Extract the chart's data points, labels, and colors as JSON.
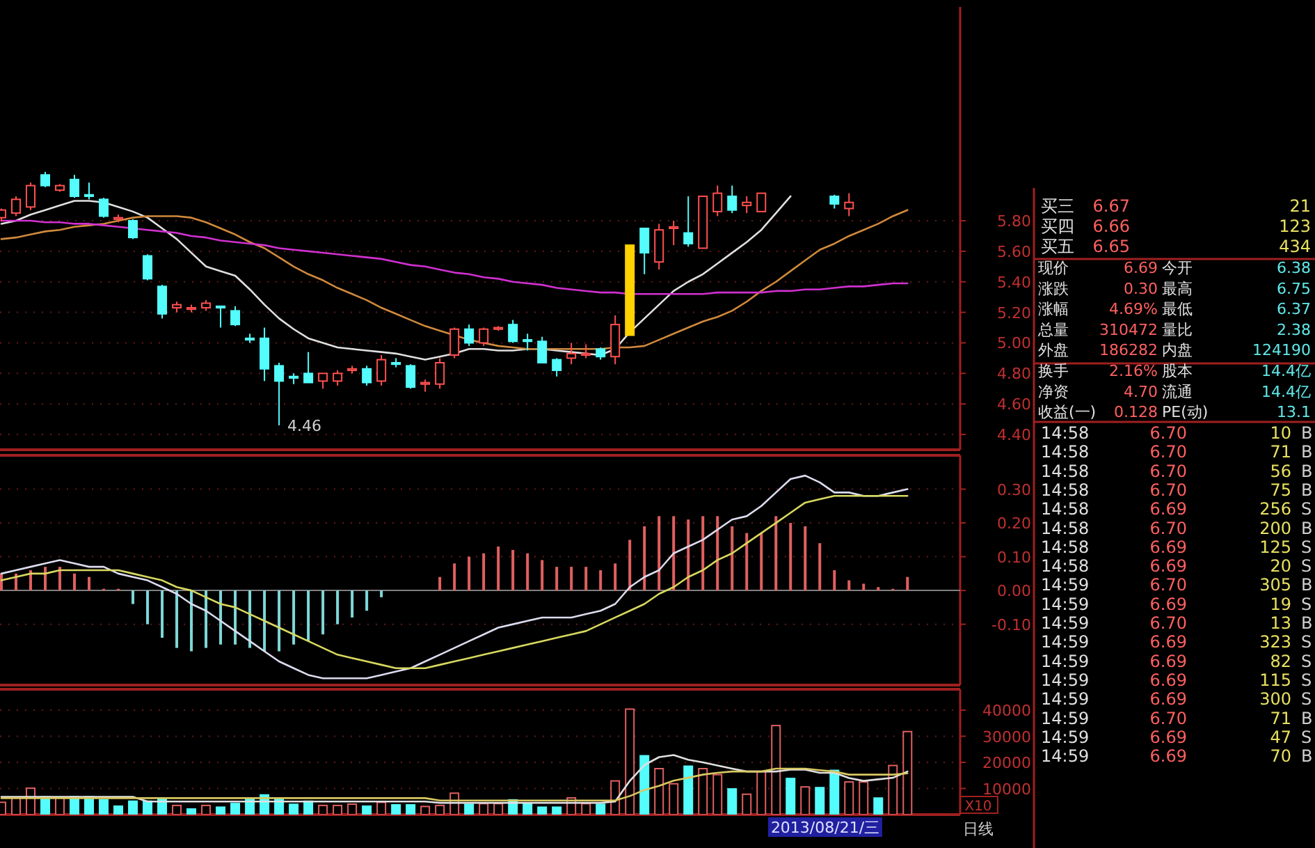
{
  "chart_data": [
    {
      "type": "candlestick",
      "categories": [
        null,
        null,
        null,
        null,
        null,
        null,
        null,
        null,
        null,
        null,
        null,
        null,
        null,
        null,
        null,
        null,
        null,
        null,
        null,
        null,
        null,
        null,
        null,
        null,
        null,
        null,
        null,
        null,
        null,
        null,
        null,
        null,
        null,
        null,
        null,
        null,
        null,
        null,
        null,
        null,
        null,
        null,
        null,
        null,
        null,
        null,
        null,
        null,
        null,
        null,
        null,
        null,
        null,
        null,
        null,
        null,
        null,
        null,
        null,
        null,
        null,
        null,
        null
      ],
      "ohlc": [
        [
          5.82,
          5.88,
          5.8,
          5.87
        ],
        [
          5.85,
          5.96,
          5.83,
          5.94
        ],
        [
          5.89,
          6.05,
          5.87,
          6.03
        ],
        [
          6.1,
          6.12,
          6.02,
          6.03
        ],
        [
          6.0,
          6.04,
          5.99,
          6.03
        ],
        [
          6.07,
          6.1,
          5.95,
          5.96
        ],
        [
          5.97,
          6.05,
          5.94,
          5.96
        ],
        [
          5.94,
          5.95,
          5.82,
          5.83
        ],
        [
          5.81,
          5.84,
          5.79,
          5.82
        ],
        [
          5.8,
          5.81,
          5.68,
          5.69
        ],
        [
          5.57,
          5.58,
          5.41,
          5.42
        ],
        [
          5.37,
          5.38,
          5.16,
          5.19
        ],
        [
          5.23,
          5.27,
          5.2,
          5.25
        ],
        [
          5.22,
          5.25,
          5.2,
          5.23
        ],
        [
          5.23,
          5.28,
          5.21,
          5.26
        ],
        [
          5.24,
          5.24,
          5.1,
          5.23
        ],
        [
          5.21,
          5.24,
          5.11,
          5.12
        ],
        [
          5.03,
          5.06,
          5.0,
          5.02
        ],
        [
          5.03,
          5.1,
          4.75,
          4.83
        ],
        [
          4.85,
          4.87,
          4.46,
          4.75
        ],
        [
          4.78,
          4.8,
          4.73,
          4.77
        ],
        [
          4.8,
          4.94,
          4.74,
          4.74
        ],
        [
          4.75,
          4.8,
          4.7,
          4.8
        ],
        [
          4.75,
          4.82,
          4.72,
          4.8
        ],
        [
          4.82,
          4.85,
          4.8,
          4.83
        ],
        [
          4.83,
          4.85,
          4.72,
          4.74
        ],
        [
          4.75,
          4.92,
          4.72,
          4.89
        ],
        [
          4.87,
          4.9,
          4.84,
          4.86
        ],
        [
          4.85,
          4.86,
          4.7,
          4.71
        ],
        [
          4.73,
          4.76,
          4.68,
          4.74
        ],
        [
          4.73,
          4.9,
          4.7,
          4.87
        ],
        [
          4.92,
          5.1,
          4.9,
          5.09
        ],
        [
          5.09,
          5.12,
          4.98,
          5.0
        ],
        [
          5.0,
          5.1,
          4.98,
          5.09
        ],
        [
          5.09,
          5.11,
          5.08,
          5.1
        ],
        [
          5.12,
          5.15,
          5.0,
          5.01
        ],
        [
          5.02,
          5.06,
          4.95,
          5.01
        ],
        [
          5.01,
          5.04,
          4.87,
          4.87
        ],
        [
          4.89,
          4.9,
          4.78,
          4.82
        ],
        [
          4.9,
          5.0,
          4.86,
          4.93
        ],
        [
          4.92,
          4.99,
          4.9,
          4.93
        ],
        [
          4.96,
          4.97,
          4.89,
          4.91
        ],
        [
          4.91,
          5.18,
          4.86,
          5.12
        ],
        [
          5.05,
          5.64,
          5.05,
          5.64
        ],
        [
          5.75,
          5.75,
          5.45,
          5.59
        ],
        [
          5.53,
          5.78,
          5.48,
          5.74
        ],
        [
          5.75,
          5.8,
          5.64,
          5.76
        ],
        [
          5.72,
          5.96,
          5.63,
          5.65
        ],
        [
          5.62,
          5.96,
          5.62,
          5.96
        ],
        [
          5.86,
          6.03,
          5.83,
          5.98
        ],
        [
          5.96,
          6.03,
          5.85,
          5.87
        ],
        [
          5.9,
          5.96,
          5.85,
          5.92
        ],
        [
          5.86,
          5.98,
          5.86,
          5.98
        ],
        null,
        null,
        null,
        null,
        [
          5.96,
          5.97,
          5.88,
          5.91
        ],
        [
          5.88,
          5.98,
          5.83,
          5.92
        ],
        null,
        null,
        null,
        null
      ],
      "colors": [
        "#ff5050",
        "#ff5050",
        "#ff5050",
        "#54fcfc",
        "#ff5050",
        "#54fcfc",
        "#54fcfc",
        "#54fcfc",
        "#ff5050",
        "#54fcfc",
        "#54fcfc",
        "#54fcfc",
        "#ff5050",
        "#ff5050",
        "#ff5050",
        "#54fcfc",
        "#54fcfc",
        "#54fcfc",
        "#54fcfc",
        "#54fcfc",
        "#54fcfc",
        "#54fcfc",
        "#ff5050",
        "#ff5050",
        "#ff5050",
        "#54fcfc",
        "#ff5050",
        "#54fcfc",
        "#54fcfc",
        "#ff5050",
        "#ff5050",
        "#ff5050",
        "#54fcfc",
        "#ff5050",
        "#ff5050",
        "#54fcfc",
        "#54fcfc",
        "#54fcfc",
        "#54fcfc",
        "#ff5050",
        "#ff5050",
        "#54fcfc",
        "#ff5050",
        "#ffd200",
        "#54fcfc",
        "#ff5050",
        "#ff5050",
        "#54fcfc",
        "#ff5050",
        "#ff5050",
        "#54fcfc",
        "#ff5050",
        "#ff5050",
        null,
        null,
        null,
        null,
        "#54fcfc",
        "#ff5050",
        null,
        null,
        null,
        null
      ],
      "series": [
        {
          "type": "line",
          "color": "#e0e0e0",
          "values": [
            5.78,
            5.8,
            5.84,
            5.87,
            5.9,
            5.93,
            5.93,
            5.92,
            5.89,
            5.86,
            5.82,
            5.75,
            5.68,
            5.59,
            5.5,
            5.47,
            5.44,
            5.35,
            5.25,
            5.16,
            5.09,
            5.03,
            5.0,
            4.97,
            4.96,
            4.95,
            4.94,
            4.93,
            4.91,
            4.89,
            4.91,
            4.93,
            4.96,
            4.96,
            4.95,
            4.95,
            4.96,
            4.96,
            4.95,
            4.94,
            4.93,
            4.92,
            4.96,
            5.07,
            5.16,
            5.25,
            5.34,
            5.4,
            5.45,
            5.52,
            5.59,
            5.66,
            5.74,
            5.85,
            5.96,
            null,
            null,
            null,
            null,
            null,
            null,
            null,
            null
          ]
        },
        {
          "type": "line",
          "color": "#d08a3c",
          "values": [
            5.68,
            5.69,
            5.71,
            5.73,
            5.74,
            5.76,
            5.77,
            5.78,
            5.8,
            5.82,
            5.83,
            5.83,
            5.83,
            5.82,
            5.79,
            5.75,
            5.71,
            5.66,
            5.62,
            5.56,
            5.5,
            5.45,
            5.41,
            5.36,
            5.32,
            5.28,
            5.23,
            5.19,
            5.15,
            5.11,
            5.08,
            5.05,
            5.02,
            5.0,
            4.98,
            4.97,
            4.96,
            4.96,
            4.96,
            4.96,
            4.96,
            4.96,
            4.97,
            4.97,
            4.98,
            5.02,
            5.06,
            5.1,
            5.14,
            5.17,
            5.21,
            5.27,
            5.34,
            5.4,
            5.47,
            5.54,
            5.61,
            5.65,
            5.7,
            5.74,
            5.78,
            5.83,
            5.87
          ]
        },
        {
          "type": "line",
          "color": "#d030d0",
          "values": [
            5.8,
            5.8,
            5.8,
            5.79,
            5.79,
            5.78,
            5.78,
            5.77,
            5.76,
            5.75,
            5.74,
            5.73,
            5.72,
            5.7,
            5.69,
            5.67,
            5.66,
            5.65,
            5.64,
            5.62,
            5.61,
            5.6,
            5.59,
            5.58,
            5.57,
            5.56,
            5.55,
            5.53,
            5.51,
            5.5,
            5.48,
            5.46,
            5.45,
            5.43,
            5.42,
            5.4,
            5.39,
            5.38,
            5.36,
            5.35,
            5.34,
            5.33,
            5.33,
            5.32,
            5.32,
            5.32,
            5.32,
            5.32,
            5.32,
            5.33,
            5.33,
            5.33,
            5.33,
            5.34,
            5.34,
            5.35,
            5.35,
            5.36,
            5.37,
            5.37,
            5.38,
            5.39,
            5.39
          ]
        }
      ],
      "ylim": [
        4.3,
        7.2
      ],
      "yticks": [
        {
          "value": 4.4,
          "label": "4.40"
        },
        {
          "value": 4.6,
          "label": "4.60"
        },
        {
          "value": 4.8,
          "label": "4.80"
        },
        {
          "value": 5.0,
          "label": "5.00"
        },
        {
          "value": 5.2,
          "label": "5.20"
        },
        {
          "value": 5.4,
          "label": "5.40"
        },
        {
          "value": 5.6,
          "label": "5.60"
        },
        {
          "value": 5.8,
          "label": "5.80"
        }
      ],
      "grid": "y",
      "tick_labels": "y",
      "annotations": [
        "4.46"
      ]
    },
    {
      "type": "bar",
      "categories": [
        null,
        null,
        null,
        null,
        null,
        null,
        null,
        null,
        null,
        null,
        null,
        null,
        null,
        null,
        null,
        null,
        null,
        null,
        null,
        null,
        null,
        null,
        null,
        null,
        null,
        null,
        null,
        null,
        null,
        null,
        null,
        null,
        null,
        null,
        null,
        null,
        null,
        null,
        null,
        null,
        null,
        null,
        null,
        null,
        null,
        null,
        null,
        null,
        null,
        null,
        null,
        null,
        null,
        null,
        null,
        null,
        null,
        null,
        null,
        null,
        null,
        null,
        null
      ],
      "series": [
        {
          "type": "bar",
          "color": "#e06060",
          "values": [
            0.05,
            0.05,
            0.06,
            0.07,
            0.07,
            0.05,
            0.04,
            0.005,
            0.005,
            null,
            null,
            null,
            null,
            null,
            null,
            null,
            null,
            null,
            null,
            null,
            null,
            null,
            null,
            null,
            null,
            null,
            null,
            0,
            0,
            0,
            0.04,
            0.08,
            0.1,
            0.11,
            0.13,
            0.12,
            0.11,
            0.09,
            0.07,
            0.07,
            0.07,
            0.06,
            0.08,
            0.15,
            0.19,
            0.22,
            0.22,
            0.21,
            0.22,
            0.22,
            0.19,
            0.17,
            0.17,
            0.22,
            0.2,
            0.19,
            0.14,
            0.06,
            0.03,
            0.02,
            0.01,
            0.005,
            0.04
          ]
        },
        {
          "type": "bar",
          "color": "#7fd8d8",
          "values": [
            null,
            null,
            null,
            null,
            null,
            null,
            null,
            null,
            null,
            -0.04,
            -0.1,
            -0.14,
            -0.17,
            -0.18,
            -0.17,
            -0.16,
            -0.16,
            -0.17,
            -0.18,
            -0.18,
            -0.16,
            -0.15,
            -0.13,
            -0.1,
            -0.08,
            -0.06,
            -0.02,
            null,
            null,
            null,
            null,
            null,
            null,
            null,
            null,
            null,
            null,
            null,
            null,
            null,
            null,
            null,
            null,
            null,
            null,
            null,
            null,
            null,
            null,
            null,
            null,
            null,
            null,
            null,
            null,
            null,
            null,
            null,
            null,
            null,
            null,
            null,
            null
          ]
        },
        {
          "type": "line",
          "color": "#dcdcf0",
          "values": [
            0.05,
            0.06,
            0.07,
            0.08,
            0.09,
            0.08,
            0.07,
            0.07,
            0.05,
            0.04,
            0.03,
            0.01,
            -0.01,
            -0.04,
            -0.06,
            -0.09,
            -0.12,
            -0.15,
            -0.18,
            -0.21,
            -0.23,
            -0.25,
            -0.26,
            -0.26,
            -0.26,
            -0.26,
            -0.25,
            -0.24,
            -0.23,
            -0.21,
            -0.19,
            -0.17,
            -0.15,
            -0.13,
            -0.11,
            -0.1,
            -0.09,
            -0.08,
            -0.08,
            -0.08,
            -0.07,
            -0.06,
            -0.04,
            0.01,
            0.04,
            0.06,
            0.11,
            0.13,
            0.15,
            0.18,
            0.21,
            0.22,
            0.25,
            0.29,
            0.33,
            0.34,
            0.32,
            0.29,
            0.29,
            0.28,
            0.28,
            0.29,
            0.3
          ]
        },
        {
          "type": "line",
          "color": "#d8d860",
          "values": [
            0.03,
            0.04,
            0.05,
            0.05,
            0.06,
            0.06,
            0.06,
            0.06,
            0.06,
            0.05,
            0.04,
            0.03,
            0.01,
            0.0,
            -0.02,
            -0.04,
            -0.05,
            -0.07,
            -0.09,
            -0.11,
            -0.13,
            -0.15,
            -0.17,
            -0.19,
            -0.2,
            -0.21,
            -0.22,
            -0.23,
            -0.23,
            -0.23,
            -0.22,
            -0.21,
            -0.2,
            -0.19,
            -0.18,
            -0.17,
            -0.16,
            -0.15,
            -0.14,
            -0.13,
            -0.12,
            -0.1,
            -0.08,
            -0.06,
            -0.04,
            -0.01,
            0.01,
            0.04,
            0.06,
            0.09,
            0.11,
            0.14,
            0.17,
            0.2,
            0.23,
            0.26,
            0.27,
            0.28,
            0.28,
            0.28,
            0.28,
            0.28,
            0.28
          ]
        }
      ],
      "ylim": [
        -0.28,
        0.4
      ],
      "yticks": [
        {
          "value": -0.1,
          "label": "-0.10"
        },
        {
          "value": 0,
          "label": "0.00"
        },
        {
          "value": 0.1,
          "label": "0.10"
        },
        {
          "value": 0.2,
          "label": "0.20"
        },
        {
          "value": 0.3,
          "label": "0.30"
        }
      ],
      "grid": "y",
      "tick_labels": "y"
    },
    {
      "type": "bar",
      "categories": [
        null,
        null,
        null,
        null,
        null,
        null,
        null,
        null,
        null,
        null,
        null,
        null,
        null,
        null,
        null,
        null,
        null,
        null,
        null,
        null,
        null,
        null,
        null,
        null,
        null,
        null,
        null,
        null,
        null,
        null,
        null,
        null,
        null,
        null,
        null,
        null,
        null,
        null,
        null,
        null,
        null,
        null,
        null,
        null,
        null,
        null,
        null,
        null,
        null,
        null,
        null,
        null,
        null,
        null,
        null,
        null,
        null,
        null,
        null,
        null,
        null,
        null,
        null
      ],
      "series": [
        {
          "type": "bar",
          "color": "#e06060",
          "values": [
            4700,
            6400,
            10100,
            null,
            6400,
            null,
            null,
            null,
            null,
            null,
            null,
            null,
            3500,
            null,
            3500,
            null,
            null,
            null,
            null,
            null,
            null,
            null,
            3500,
            3500,
            4000,
            null,
            4700,
            null,
            null,
            3100,
            3500,
            8200,
            null,
            4200,
            4200,
            null,
            null,
            null,
            null,
            6400,
            4200,
            null,
            12900,
            40400,
            null,
            17600,
            11800,
            null,
            17600,
            15300,
            null,
            7800,
            16500,
            34100,
            null,
            10600,
            null,
            null,
            12500,
            12500,
            null,
            18800,
            31800
          ]
        },
        {
          "type": "bar",
          "color": "#54fcfc",
          "values": [
            null,
            null,
            null,
            7100,
            null,
            7100,
            7100,
            5900,
            3500,
            5400,
            5400,
            6400,
            null,
            2400,
            null,
            3100,
            4500,
            6400,
            7800,
            6400,
            4200,
            5400,
            null,
            null,
            null,
            3500,
            null,
            4000,
            4000,
            null,
            null,
            null,
            4200,
            null,
            null,
            5900,
            4500,
            3100,
            3100,
            null,
            null,
            4200,
            null,
            null,
            22800,
            null,
            null,
            18800,
            null,
            null,
            10100,
            null,
            null,
            null,
            14100,
            null,
            10600,
            17200,
            null,
            null,
            6600,
            null,
            null
          ]
        },
        {
          "type": "line",
          "color": "#e0e0e0",
          "values": [
            6800,
            6800,
            6800,
            6800,
            6800,
            6800,
            6800,
            6800,
            6800,
            6800,
            5000,
            5000,
            5000,
            5000,
            5000,
            5000,
            5000,
            5000,
            5000,
            5000,
            5000,
            5000,
            5000,
            5000,
            5000,
            5000,
            5000,
            5000,
            5000,
            5000,
            4500,
            4500,
            4500,
            4500,
            4500,
            4500,
            4500,
            4500,
            4500,
            4500,
            4500,
            4500,
            5000,
            12900,
            19000,
            22000,
            22800,
            21000,
            20000,
            18800,
            17600,
            16500,
            16500,
            16500,
            17200,
            17200,
            16000,
            16000,
            14000,
            12900,
            13500,
            14100,
            16500
          ]
        },
        {
          "type": "line",
          "color": "#d8c860",
          "values": [
            6300,
            6300,
            6300,
            6300,
            6300,
            6300,
            6300,
            6300,
            6300,
            6300,
            6300,
            6300,
            6300,
            6300,
            6300,
            6300,
            6300,
            6300,
            6300,
            6300,
            6300,
            6300,
            6300,
            6300,
            6300,
            6300,
            6300,
            6300,
            6300,
            6300,
            5400,
            5400,
            5400,
            5400,
            5400,
            5400,
            5400,
            5400,
            5400,
            5400,
            5400,
            5400,
            5400,
            7100,
            9400,
            11000,
            13000,
            14100,
            15300,
            16000,
            16500,
            16500,
            16500,
            17600,
            17600,
            17600,
            17000,
            16500,
            15300,
            15300,
            15300,
            15300,
            15800
          ]
        }
      ],
      "ylim": [
        0,
        48000
      ],
      "yticks": [
        10000,
        20000,
        30000,
        40000
      ],
      "ylabel": "X10",
      "grid": "y",
      "tick_labels": "y",
      "annotations": [
        "2013/08/21/三",
        "日线"
      ]
    },
    {
      "type": "other",
      "annotations": [
        "买三",
        "6.67",
        "21",
        "买四",
        "6.66",
        "123",
        "买五",
        "6.65",
        "434"
      ]
    },
    {
      "type": "other",
      "annotations": [
        "现价",
        "6.69",
        "今开",
        "6.38",
        "涨跌",
        "0.30",
        "最高",
        "6.75",
        "涨幅",
        "4.69%",
        "最低",
        "6.37",
        "总量",
        "310472",
        "量比",
        "2.38",
        "外盘",
        "186282",
        "内盘",
        "124190",
        "换手",
        "2.16%",
        "股本",
        "14.4亿",
        "净资",
        "4.70",
        "流通",
        "14.4亿",
        "收益(一)",
        "0.128",
        "PE(动)",
        "13.1"
      ]
    },
    {
      "type": "other",
      "annotations": [
        "14:58",
        "6.70",
        "10",
        "B",
        "14:58",
        "6.70",
        "71",
        "B",
        "14:58",
        "6.70",
        "56",
        "B",
        "14:58",
        "6.70",
        "75",
        "B",
        "14:58",
        "6.69",
        "256",
        "S",
        "14:58",
        "6.70",
        "200",
        "B",
        "14:58",
        "6.69",
        "125",
        "S",
        "14:58",
        "6.69",
        "20",
        "S",
        "14:59",
        "6.70",
        "305",
        "B",
        "14:59",
        "6.69",
        "19",
        "S",
        "14:59",
        "6.70",
        "13",
        "B",
        "14:59",
        "6.69",
        "323",
        "S",
        "14:59",
        "6.69",
        "82",
        "S",
        "14:59",
        "6.69",
        "115",
        "S",
        "14:59",
        "6.69",
        "300",
        "S",
        "14:59",
        "6.70",
        "71",
        "B",
        "14:59",
        "6.69",
        "47",
        "S",
        "14:59",
        "6.69",
        "70",
        "B"
      ]
    }
  ]
}
